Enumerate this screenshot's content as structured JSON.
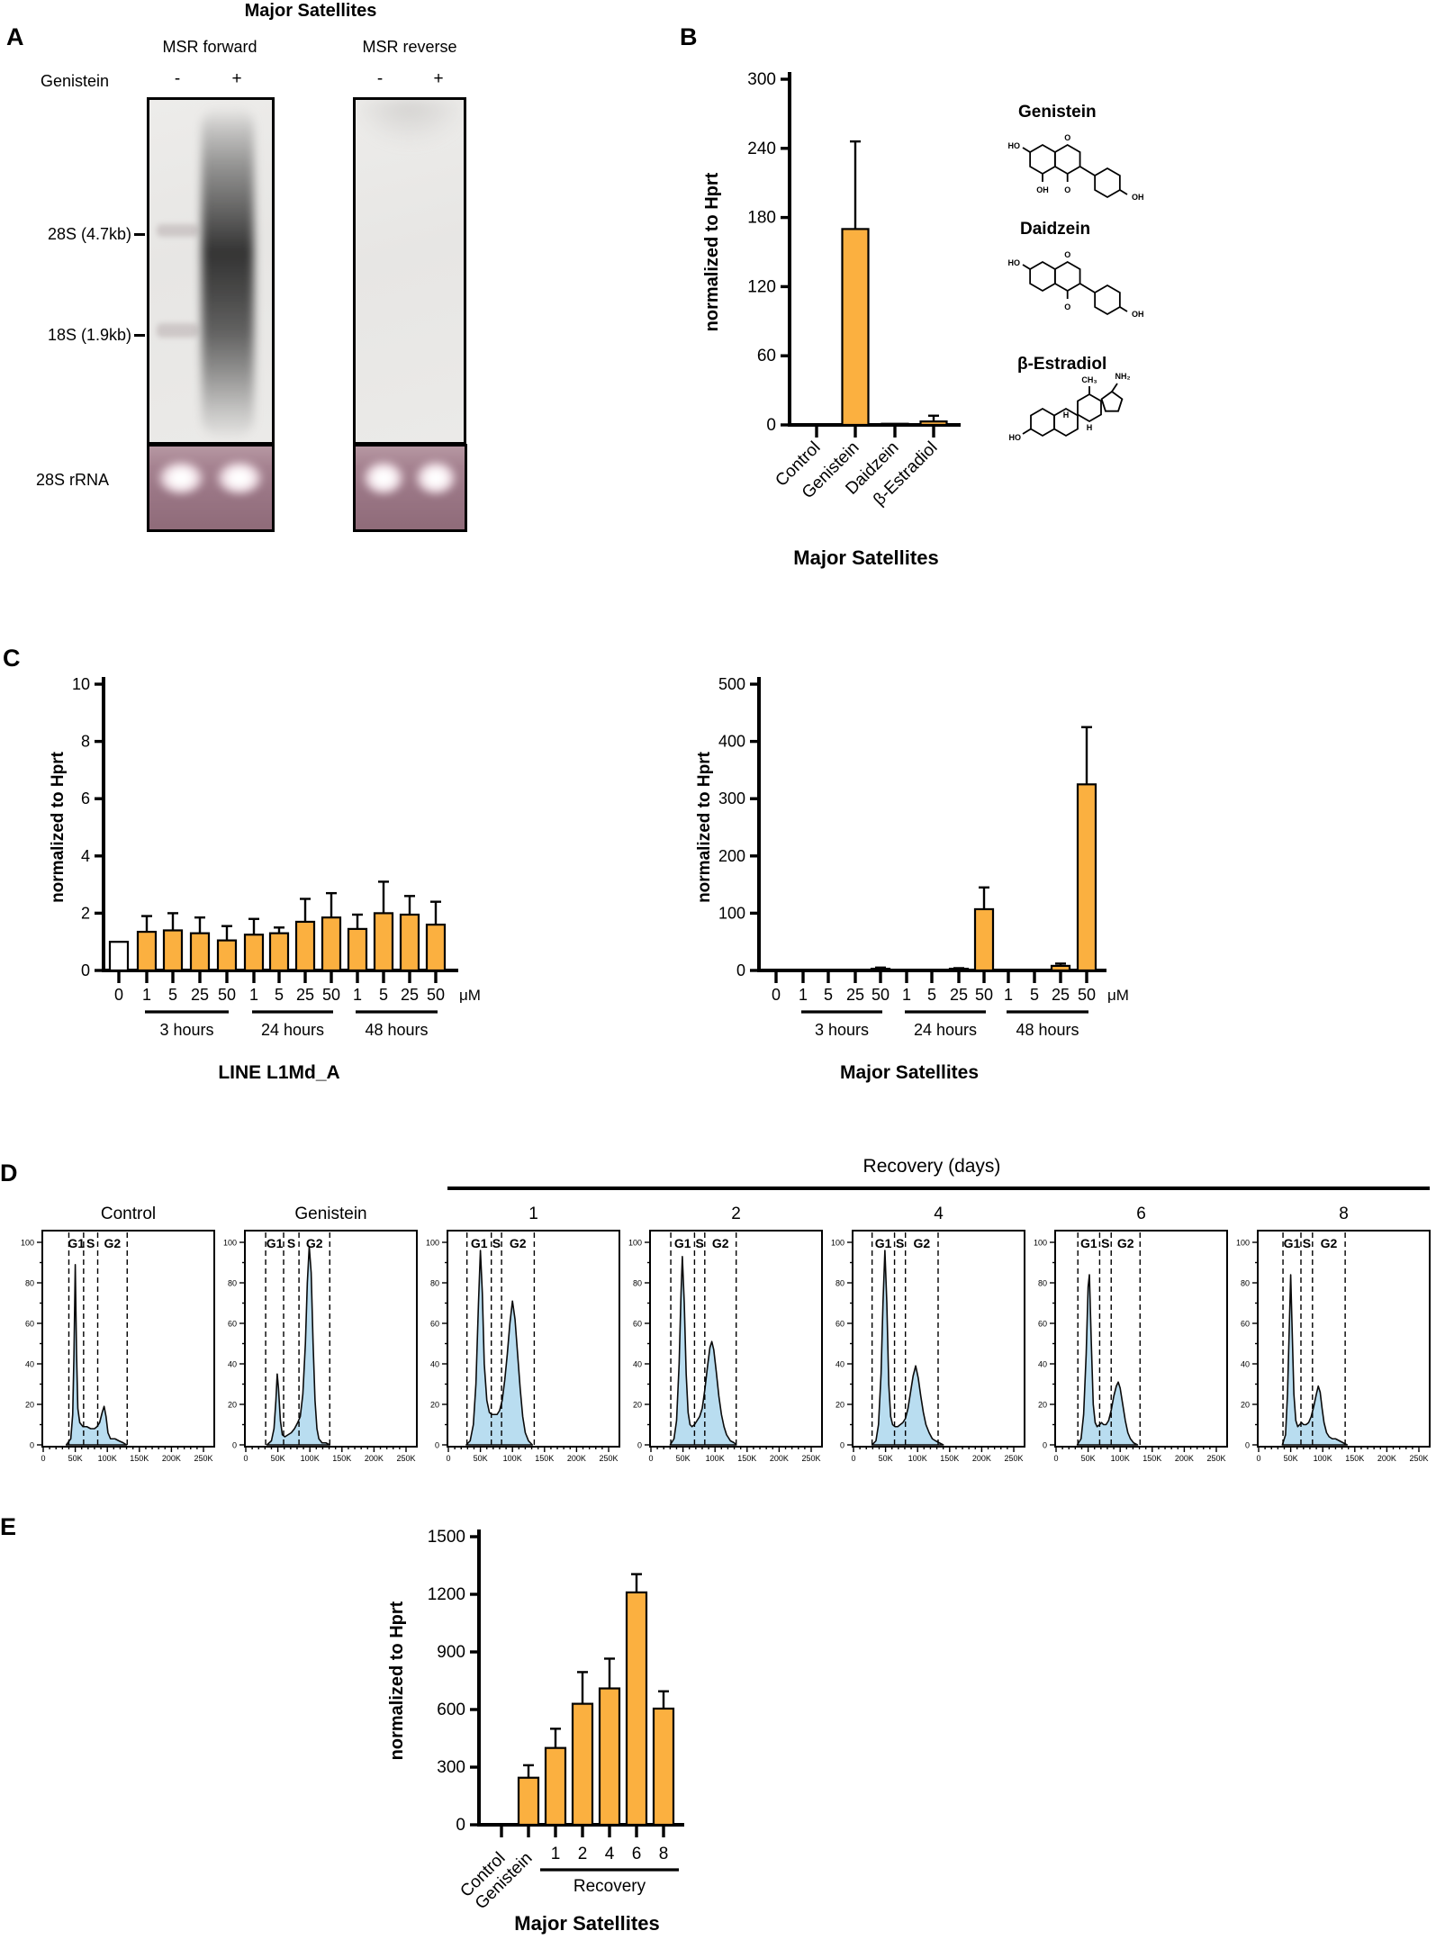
{
  "accent_color": "#FBB040",
  "histogram_fill": "#B9DDF0",
  "panelA": {
    "label": "A",
    "title": "Major Satellites",
    "blot1_title": "MSR forward",
    "blot2_title": "MSR reverse",
    "treatment_label": "Genistein",
    "minus": "-",
    "plus": "+",
    "marker_28s": "28S (4.7kb)",
    "marker_18s": "18S (1.9kb)",
    "loading_label": "28S rRNA"
  },
  "panelB": {
    "label": "B",
    "molecules": [
      {
        "name": "Genistein",
        "atoms": [
          "HO",
          "O",
          "O",
          "OH",
          "OH"
        ]
      },
      {
        "name": "Daidzein",
        "atoms": [
          "HO",
          "O",
          "O",
          "OH"
        ]
      },
      {
        "name": "β-Estradiol",
        "atoms": [
          "HO",
          "CH₃",
          "NH₂",
          "H",
          "H"
        ]
      }
    ]
  },
  "panelC": {
    "label": "C"
  },
  "panelD": {
    "label": "D",
    "recovery_header": "Recovery (days)"
  },
  "panelE": {
    "label": "E"
  },
  "chart_data": [
    {
      "id": "panel-b",
      "type": "bar",
      "title": "Major Satellites",
      "ylabel": "normalized to Hprt",
      "ylim": [
        0,
        300
      ],
      "yticks": [
        0,
        60,
        120,
        180,
        240,
        300
      ],
      "categories": [
        "Control",
        "Genistein",
        "Daidzein",
        "β-Estradiol"
      ],
      "values": [
        0,
        170,
        1,
        3
      ],
      "errors_up": [
        0,
        76,
        0,
        5
      ],
      "bar_color": "#FBB040"
    },
    {
      "id": "panel-c-left",
      "type": "bar",
      "title": "LINE L1Md_A",
      "ylabel": "normalized to Hprt",
      "unit": "μM",
      "ylim": [
        0,
        10
      ],
      "yticks": [
        0,
        2,
        4,
        6,
        8,
        10
      ],
      "categories": [
        "0",
        "1",
        "5",
        "25",
        "50",
        "1",
        "5",
        "25",
        "50",
        "1",
        "5",
        "25",
        "50"
      ],
      "values": [
        1.0,
        1.35,
        1.4,
        1.3,
        1.05,
        1.25,
        1.3,
        1.7,
        1.85,
        1.45,
        2.0,
        1.95,
        1.6
      ],
      "errors_up": [
        0,
        0.55,
        0.6,
        0.55,
        0.5,
        0.55,
        0.2,
        0.8,
        0.85,
        0.5,
        1.1,
        0.65,
        0.8
      ],
      "white_bars": [
        0
      ],
      "groups": [
        {
          "label": "3 hours",
          "from": 1,
          "to": 4
        },
        {
          "label": "24 hours",
          "from": 5,
          "to": 8
        },
        {
          "label": "48 hours",
          "from": 9,
          "to": 12
        }
      ],
      "bar_color": "#FBB040"
    },
    {
      "id": "panel-c-right",
      "type": "bar",
      "title": "Major Satellites",
      "ylabel": "normalized to Hprt",
      "unit": "μM",
      "ylim": [
        0,
        500
      ],
      "yticks": [
        0,
        100,
        200,
        300,
        400,
        500
      ],
      "categories": [
        "0",
        "1",
        "5",
        "25",
        "50",
        "1",
        "5",
        "25",
        "50",
        "1",
        "5",
        "25",
        "50"
      ],
      "values": [
        0,
        1,
        1,
        1,
        3,
        1,
        1,
        3,
        107,
        1,
        1,
        8,
        325
      ],
      "errors_up": [
        0,
        0,
        0,
        0,
        2,
        0,
        0,
        1,
        38,
        0,
        0,
        4,
        100
      ],
      "groups": [
        {
          "label": "3 hours",
          "from": 1,
          "to": 4
        },
        {
          "label": "24 hours",
          "from": 5,
          "to": 8
        },
        {
          "label": "48 hours",
          "from": 9,
          "to": 12
        }
      ],
      "bar_color": "#FBB040"
    },
    {
      "id": "panel-e",
      "type": "bar",
      "title": "Major Satellites",
      "ylabel": "normalized to Hprt",
      "ylim": [
        0,
        1500
      ],
      "yticks": [
        0,
        300,
        600,
        900,
        1200,
        1500
      ],
      "categories": [
        "Control",
        "Genistein",
        "1",
        "2",
        "4",
        "6",
        "8"
      ],
      "rotated_n": 2,
      "values": [
        0,
        245,
        400,
        630,
        710,
        1210,
        605
      ],
      "errors_up": [
        0,
        65,
        100,
        165,
        155,
        95,
        90
      ],
      "groups": [
        {
          "label": "Recovery",
          "from": 2,
          "to": 6
        }
      ],
      "bar_color": "#FBB040"
    },
    {
      "id": "panel-d",
      "type": "area",
      "ylim": [
        0,
        100
      ],
      "yticks": [
        0,
        20,
        40,
        60,
        80,
        100
      ],
      "x_tick_labels": [
        "0",
        "50K",
        "100K",
        "150K",
        "200K",
        "250K"
      ],
      "gate_labels": [
        "G1",
        "S",
        "G2"
      ],
      "fill": "#B9DDF0",
      "subplots": [
        {
          "title": "Control",
          "gates": [
            40,
            63,
            85,
            131
          ],
          "points": [
            [
              36,
              0
            ],
            [
              43,
              3
            ],
            [
              46,
              15
            ],
            [
              48,
              45
            ],
            [
              50,
              89
            ],
            [
              52,
              45
            ],
            [
              54,
              18
            ],
            [
              57,
              11
            ],
            [
              62,
              9
            ],
            [
              68,
              9
            ],
            [
              74,
              8
            ],
            [
              80,
              8
            ],
            [
              84,
              9
            ],
            [
              88,
              11
            ],
            [
              92,
              16
            ],
            [
              95,
              19
            ],
            [
              98,
              14
            ],
            [
              101,
              6
            ],
            [
              105,
              3
            ],
            [
              112,
              3
            ],
            [
              118,
              2
            ],
            [
              125,
              1
            ],
            [
              130,
              0
            ]
          ]
        },
        {
          "title": "Genistein",
          "gates": [
            31,
            59,
            83,
            131
          ],
          "points": [
            [
              33,
              0
            ],
            [
              40,
              2
            ],
            [
              44,
              8
            ],
            [
              47,
              22
            ],
            [
              49,
              35
            ],
            [
              51,
              28
            ],
            [
              54,
              12
            ],
            [
              57,
              5
            ],
            [
              61,
              4
            ],
            [
              66,
              5
            ],
            [
              71,
              6
            ],
            [
              76,
              8
            ],
            [
              81,
              11
            ],
            [
              85,
              14
            ],
            [
              89,
              25
            ],
            [
              93,
              50
            ],
            [
              96,
              80
            ],
            [
              99,
              98
            ],
            [
              102,
              85
            ],
            [
              105,
              50
            ],
            [
              108,
              22
            ],
            [
              111,
              8
            ],
            [
              114,
              3
            ],
            [
              119,
              1
            ],
            [
              125,
              1
            ],
            [
              131,
              0
            ]
          ]
        },
        {
          "title": "1",
          "gates": [
            29,
            67,
            83,
            134
          ],
          "points": [
            [
              28,
              0
            ],
            [
              34,
              2
            ],
            [
              39,
              10
            ],
            [
              43,
              30
            ],
            [
              47,
              70
            ],
            [
              50,
              96
            ],
            [
              53,
              75
            ],
            [
              56,
              40
            ],
            [
              60,
              22
            ],
            [
              64,
              16
            ],
            [
              68,
              15
            ],
            [
              72,
              15
            ],
            [
              76,
              15
            ],
            [
              80,
              17
            ],
            [
              84,
              22
            ],
            [
              88,
              32
            ],
            [
              92,
              45
            ],
            [
              96,
              60
            ],
            [
              100,
              71
            ],
            [
              104,
              62
            ],
            [
              108,
              45
            ],
            [
              112,
              28
            ],
            [
              116,
              14
            ],
            [
              120,
              6
            ],
            [
              125,
              2
            ],
            [
              131,
              0
            ]
          ]
        },
        {
          "title": "2",
          "gates": [
            31,
            68,
            84,
            133
          ],
          "points": [
            [
              30,
              0
            ],
            [
              36,
              3
            ],
            [
              40,
              12
            ],
            [
              44,
              40
            ],
            [
              47,
              75
            ],
            [
              49,
              93
            ],
            [
              52,
              70
            ],
            [
              55,
              35
            ],
            [
              58,
              16
            ],
            [
              61,
              10
            ],
            [
              64,
              9
            ],
            [
              68,
              10
            ],
            [
              72,
              12
            ],
            [
              76,
              14
            ],
            [
              80,
              18
            ],
            [
              84,
              27
            ],
            [
              88,
              38
            ],
            [
              92,
              48
            ],
            [
              95,
              51
            ],
            [
              98,
              47
            ],
            [
              102,
              36
            ],
            [
              106,
              24
            ],
            [
              110,
              15
            ],
            [
              114,
              9
            ],
            [
              118,
              5
            ],
            [
              124,
              2
            ],
            [
              130,
              1
            ],
            [
              133,
              0
            ]
          ]
        },
        {
          "title": "4",
          "gates": [
            29,
            64,
            81,
            132
          ],
          "points": [
            [
              29,
              0
            ],
            [
              35,
              2
            ],
            [
              39,
              10
            ],
            [
              43,
              35
            ],
            [
              46,
              70
            ],
            [
              49,
              96
            ],
            [
              52,
              70
            ],
            [
              55,
              30
            ],
            [
              58,
              14
            ],
            [
              61,
              10
            ],
            [
              65,
              9
            ],
            [
              69,
              9
            ],
            [
              73,
              10
            ],
            [
              77,
              11
            ],
            [
              81,
              13
            ],
            [
              85,
              18
            ],
            [
              89,
              26
            ],
            [
              93,
              34
            ],
            [
              97,
              39
            ],
            [
              101,
              33
            ],
            [
              105,
              24
            ],
            [
              109,
              16
            ],
            [
              113,
              10
            ],
            [
              118,
              6
            ],
            [
              123,
              3
            ],
            [
              128,
              2
            ],
            [
              134,
              1
            ],
            [
              140,
              0
            ]
          ]
        },
        {
          "title": "6",
          "gates": [
            34,
            68,
            86,
            131
          ],
          "points": [
            [
              33,
              0
            ],
            [
              39,
              3
            ],
            [
              43,
              15
            ],
            [
              47,
              45
            ],
            [
              50,
              78
            ],
            [
              52,
              84
            ],
            [
              55,
              50
            ],
            [
              58,
              20
            ],
            [
              61,
              11
            ],
            [
              64,
              9
            ],
            [
              68,
              10
            ],
            [
              71,
              11
            ],
            [
              74,
              10
            ],
            [
              78,
              10
            ],
            [
              82,
              12
            ],
            [
              86,
              17
            ],
            [
              90,
              24
            ],
            [
              94,
              29
            ],
            [
              97,
              31
            ],
            [
              100,
              28
            ],
            [
              104,
              20
            ],
            [
              108,
              12
            ],
            [
              112,
              6
            ],
            [
              116,
              3
            ],
            [
              121,
              1
            ],
            [
              127,
              0
            ]
          ]
        },
        {
          "title": "8",
          "gates": [
            38,
            66,
            84,
            135
          ],
          "points": [
            [
              37,
              0
            ],
            [
              42,
              5
            ],
            [
              45,
              25
            ],
            [
              48,
              60
            ],
            [
              50,
              84
            ],
            [
              52,
              60
            ],
            [
              55,
              25
            ],
            [
              58,
              12
            ],
            [
              61,
              9
            ],
            [
              64,
              10
            ],
            [
              67,
              11
            ],
            [
              70,
              10
            ],
            [
              74,
              10
            ],
            [
              78,
              11
            ],
            [
              82,
              14
            ],
            [
              86,
              19
            ],
            [
              90,
              25
            ],
            [
              93,
              29
            ],
            [
              96,
              26
            ],
            [
              99,
              18
            ],
            [
              102,
              11
            ],
            [
              106,
              6
            ],
            [
              110,
              4
            ],
            [
              115,
              3
            ],
            [
              120,
              3
            ],
            [
              126,
              2
            ],
            [
              132,
              1
            ],
            [
              138,
              0
            ]
          ]
        }
      ]
    }
  ]
}
